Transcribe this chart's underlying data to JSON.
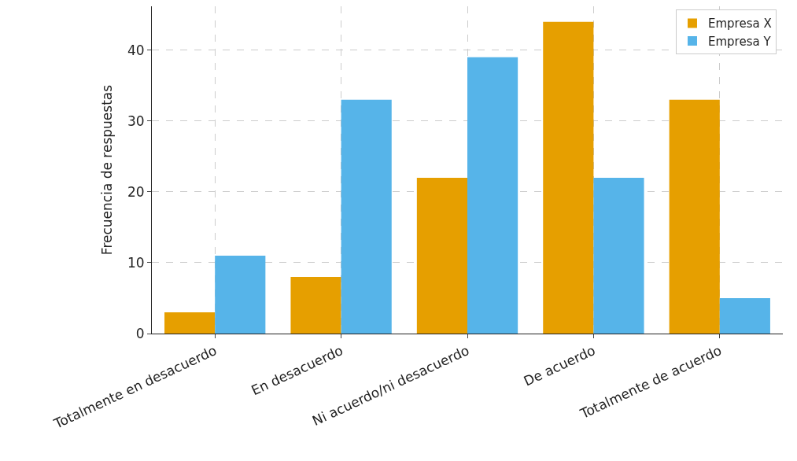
{
  "chart_data": {
    "type": "bar",
    "ylabel": "Frecuencia de respuestas",
    "categories": [
      "Totalmente en desacuerdo",
      "En desacuerdo",
      "Ni acuerdo/ni desacuerdo",
      "De acuerdo",
      "Totalmente de acuerdo"
    ],
    "series": [
      {
        "name": "Empresa X",
        "color": "#e69f00",
        "values": [
          3,
          8,
          22,
          44,
          33
        ]
      },
      {
        "name": "Empresa Y",
        "color": "#56b4e9",
        "values": [
          11,
          33,
          39,
          22,
          5
        ]
      }
    ],
    "ylim": [
      0,
      46.2
    ],
    "yticks": [
      0,
      10,
      20,
      30,
      40
    ],
    "grid": true,
    "legend": "top right"
  }
}
